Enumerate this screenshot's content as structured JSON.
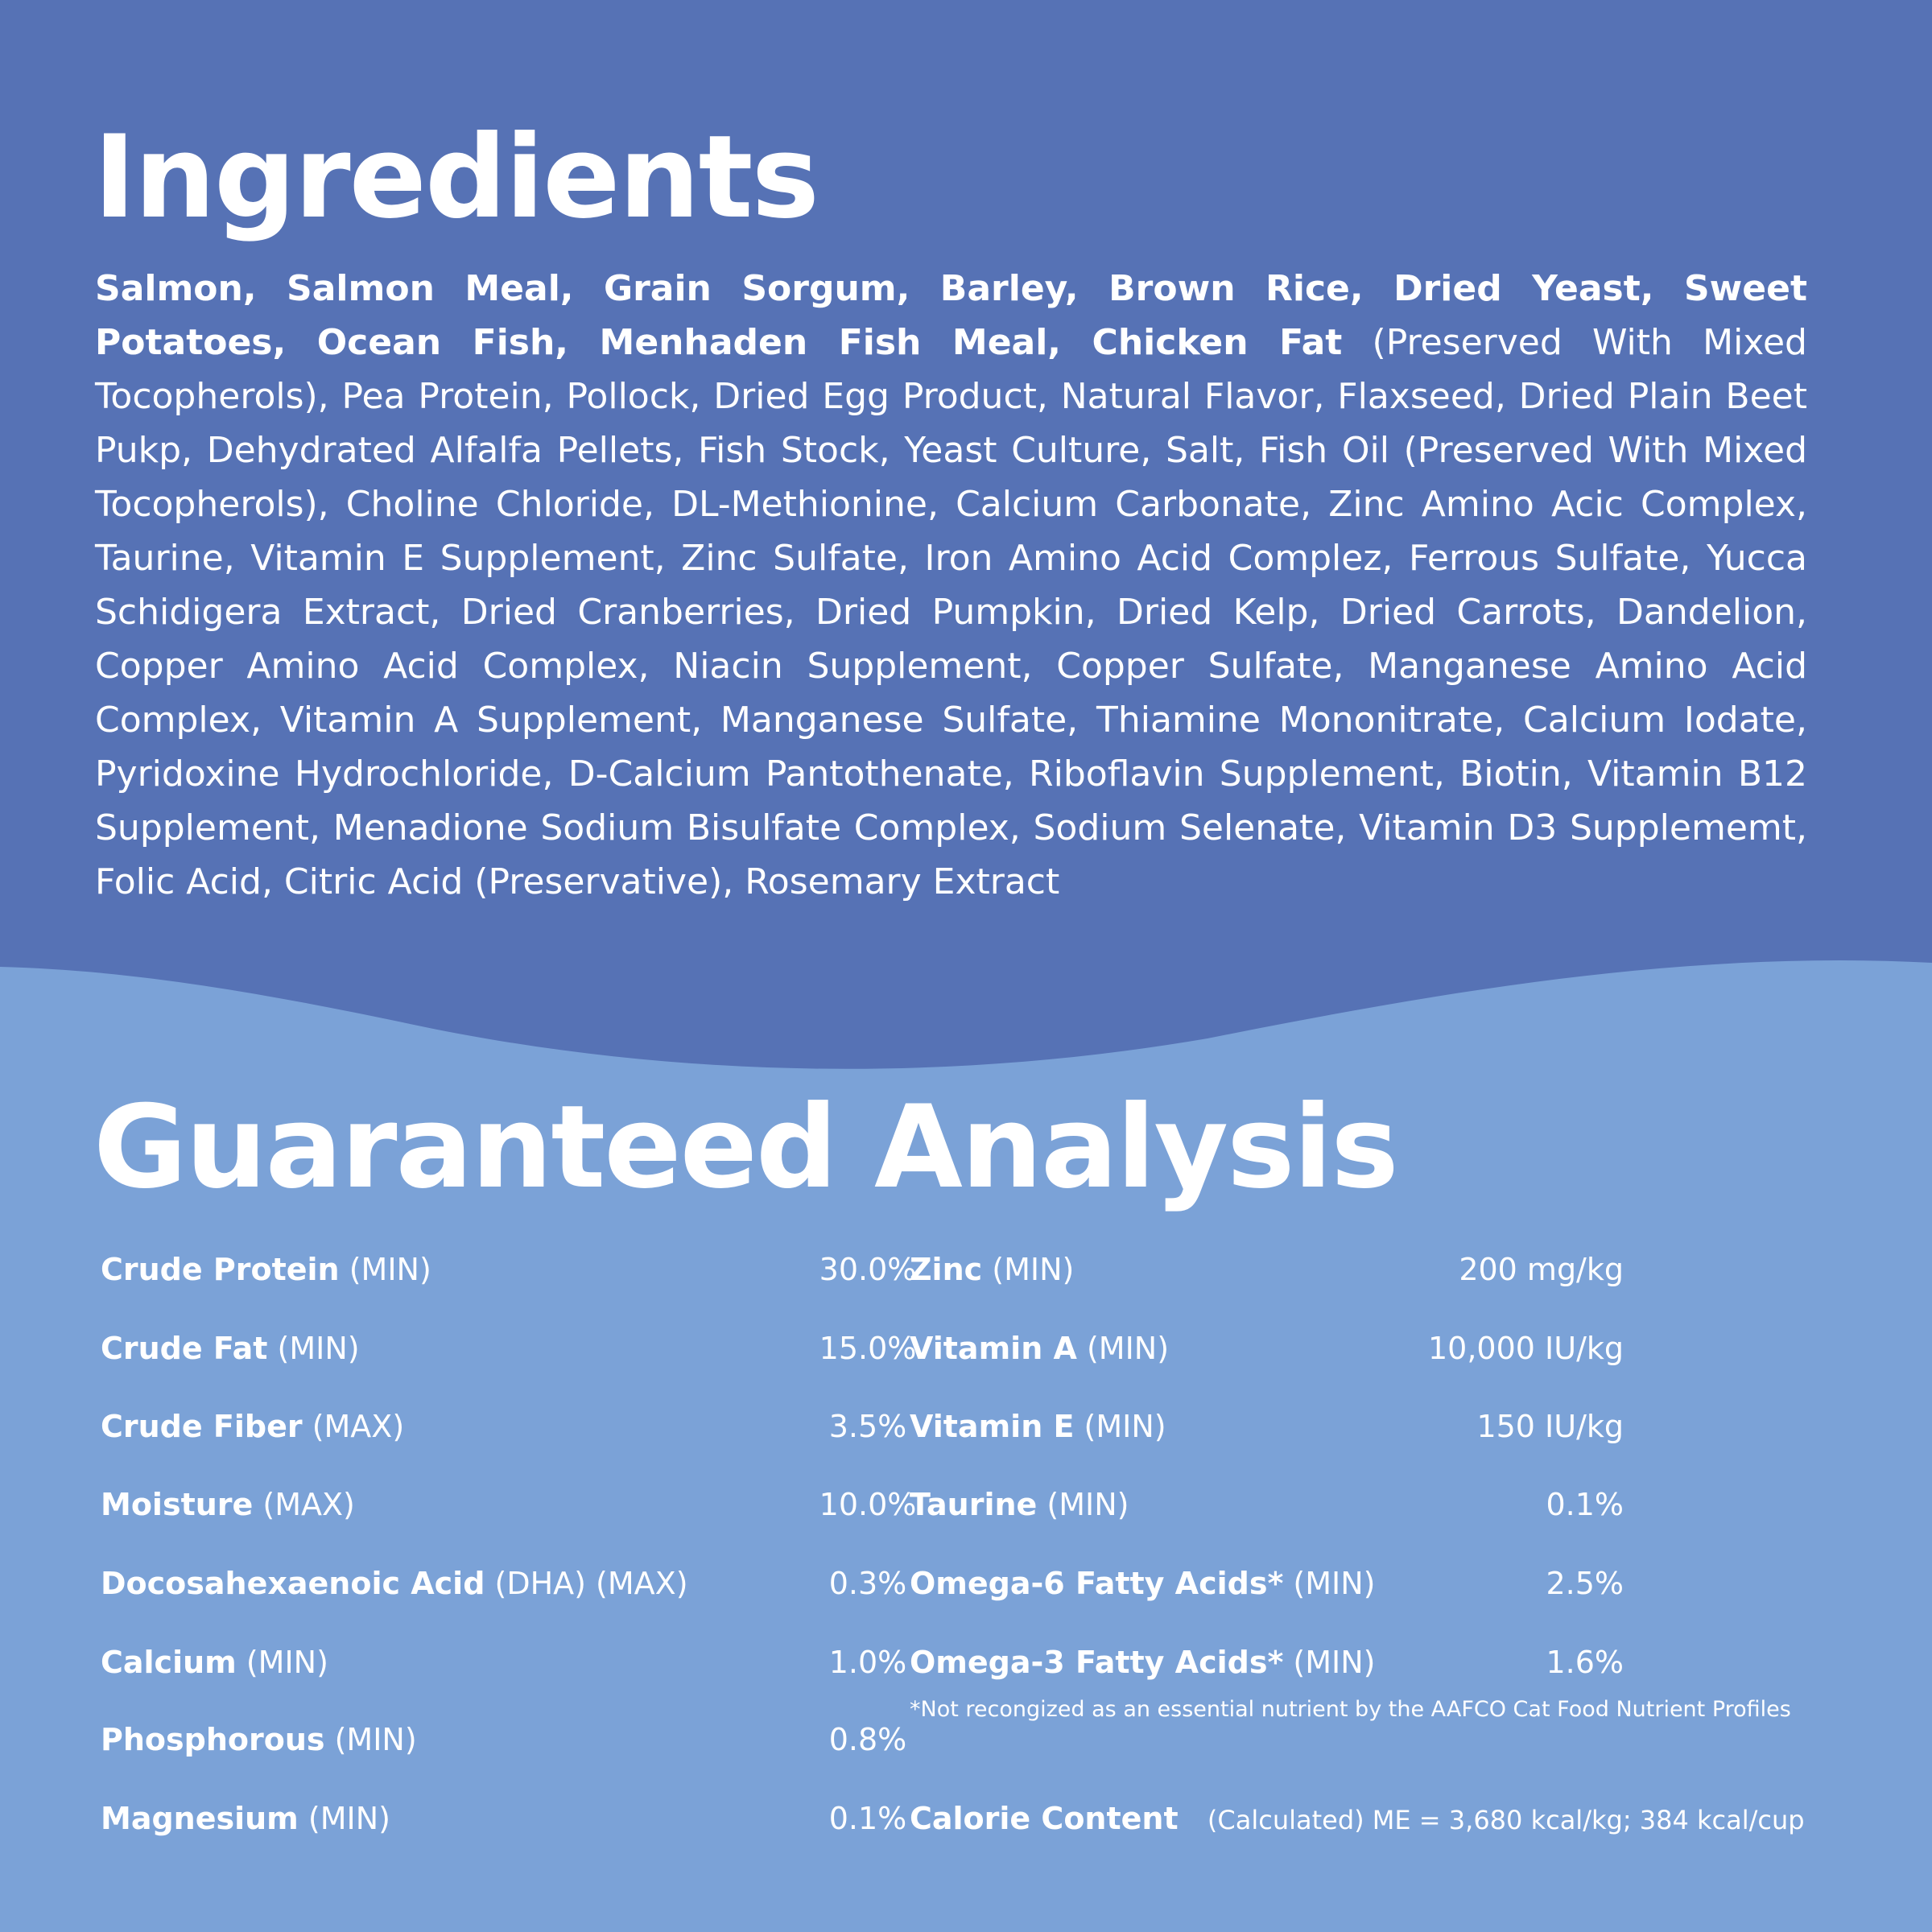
{
  "ingredients": {
    "title": "Ingredients",
    "bold_text": "Salmon, Salmon Meal, Grain Sorgum, Barley, Brown Rice, Dried Yeast, Sweet Potatoes, Ocean Fish, Menhaden Fish Meal, Chicken Fat",
    "text": "(Preserved With Mixed Tocopherols), Pea Protein, Pollock, Dried Egg Product, Natural Flavor, Flaxseed, Dried Plain Beet Pukp, Dehydrated Alfalfa Pellets, Fish Stock, Yeast Culture, Salt, Fish Oil (Preserved With Mixed Tocopherols), Choline Chloride, DL-Methionine, Calcium Carbonate, Zinc Amino Acic Complex, Taurine, Vitamin E Supplement, Zinc Sulfate, Iron Amino Acid Complez, Ferrous Sulfate, Yucca Schidigera Extract, Dried Cranberries, Dried Pumpkin, Dried Kelp, Dried Carrots, Dandelion, Copper Amino Acid Complex, Niacin Supplement, Copper Sulfate,  Manganese Amino Acid Complex, Vitamin A Supplement, Manganese Sulfate, Thiamine Mononitrate, Calcium Iodate, Pyridoxine Hydrochloride, D-Calcium Pantothenate, Riboflavin Supplement, Biotin, Vitamin B12 Supplement, Menadione Sodium Bisulfate Complex, Sodium Selenate, Vitamin D3 Supplememt, Folic Acid, Citric Acid (Preservative), Rosemary Extract"
  },
  "analysis": {
    "title": "Guaranteed Analysis",
    "left": [
      {
        "name": "Crude Protein",
        "qualifier": "(MIN)",
        "value": "30.0%"
      },
      {
        "name": "Crude Fat",
        "qualifier": "(MIN)",
        "value": "15.0%"
      },
      {
        "name": "Crude Fiber",
        "qualifier": "(MAX)",
        "value": "3.5%"
      },
      {
        "name": "Moisture",
        "qualifier": "(MAX)",
        "value": "10.0%"
      },
      {
        "name": "Docosahexaenoic Acid",
        "qualifier": "(DHA) (MAX)",
        "value": "0.3%"
      },
      {
        "name": "Calcium",
        "qualifier": "(MIN)",
        "value": "1.0%"
      },
      {
        "name": "Phosphorous",
        "qualifier": "(MIN)",
        "value": "0.8%"
      },
      {
        "name": "Magnesium",
        "qualifier": "(MIN)",
        "value": "0.1%"
      }
    ],
    "right": [
      {
        "name": "Zinc",
        "qualifier": "(MIN)",
        "value": "200 mg/kg"
      },
      {
        "name": "Vitamin A",
        "qualifier": "(MIN)",
        "value": "10,000 IU/kg"
      },
      {
        "name": "Vitamin E",
        "qualifier": "(MIN)",
        "value": "150 IU/kg"
      },
      {
        "name": "Taurine",
        "qualifier": "(MIN)",
        "value": "0.1%"
      },
      {
        "name": "Omega-6 Fatty Acids*",
        "qualifier": "(MIN)",
        "value": "2.5%"
      },
      {
        "name": "Omega-3 Fatty Acids*",
        "qualifier": "(MIN)",
        "value": "1.6%"
      }
    ],
    "footnote": "*Not recongized as an essential nutrient by the AAFCO Cat Food Nutrient Profiles",
    "calorie": {
      "name": "Calorie Content",
      "text": "(Calculated) ME = 3,680 kcal/kg; 384 kcal/cup"
    }
  }
}
